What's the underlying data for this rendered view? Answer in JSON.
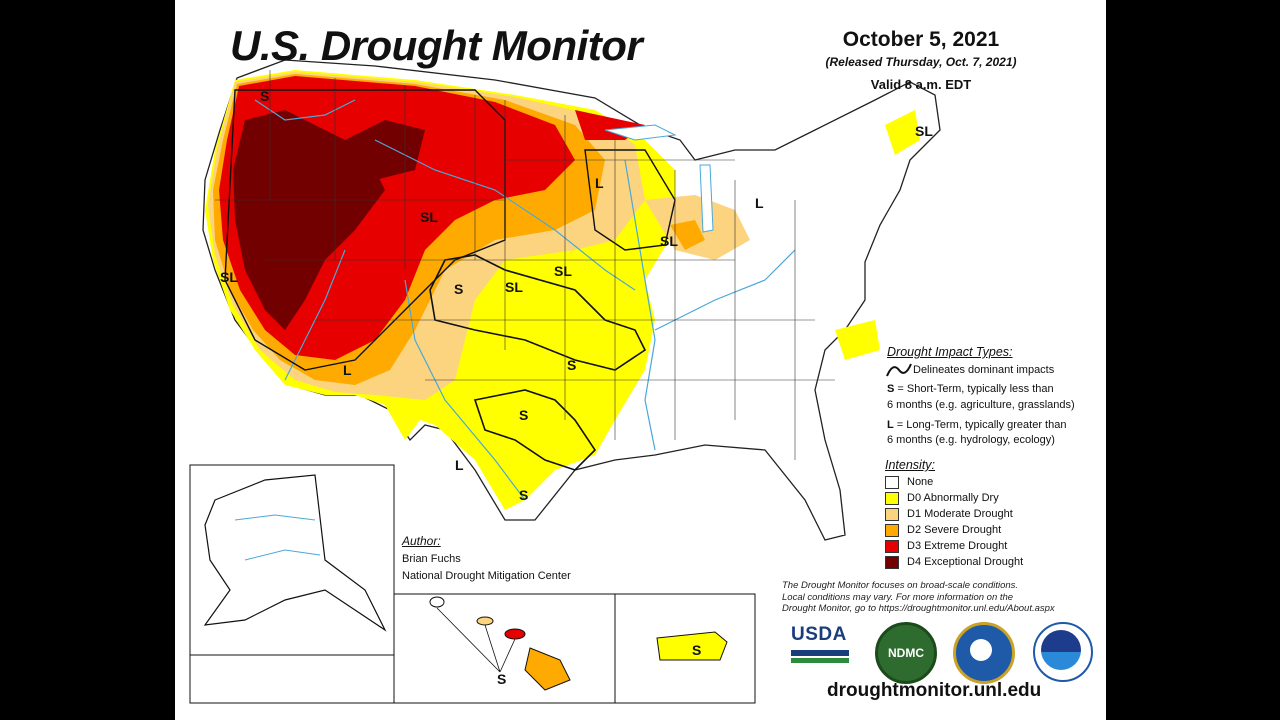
{
  "header": {
    "title": "U.S. Drought Monitor",
    "date": "October 5, 2021",
    "released": "(Released Thursday, Oct. 7, 2021)",
    "valid": "Valid 8 a.m. EDT"
  },
  "impact_types": {
    "heading": "Drought Impact Types:",
    "line_desc": "Delineates dominant impacts",
    "short_term_key": "S",
    "short_term_line1": " = Short-Term, typically less than",
    "short_term_line2": "6 months (e.g. agriculture, grasslands)",
    "long_term_key": "L",
    "long_term_line1": " = Long-Term, typically greater than",
    "long_term_line2": "6 months (e.g. hydrology, ecology)"
  },
  "intensity": {
    "heading": "Intensity:",
    "items": [
      {
        "label": "None",
        "color": "#ffffff"
      },
      {
        "label": "D0 Abnormally Dry",
        "color": "#ffff00"
      },
      {
        "label": "D1 Moderate Drought",
        "color": "#fcd37f"
      },
      {
        "label": "D2 Severe Drought",
        "color": "#ffaa00"
      },
      {
        "label": "D3 Extreme Drought",
        "color": "#e60000"
      },
      {
        "label": "D4 Exceptional Drought",
        "color": "#730000"
      }
    ]
  },
  "author": {
    "heading": "Author:",
    "name": "Brian Fuchs",
    "org": "National Drought Mitigation Center"
  },
  "disclaimer": {
    "line1": "The Drought Monitor focuses on broad-scale conditions.",
    "line2": "Local conditions may vary. For more information on the",
    "line3": "Drought Monitor, go to https://droughtmonitor.unl.edu/About.aspx"
  },
  "map_labels": {
    "wa_s": "S",
    "ca_sl": "SL",
    "mt_sl": "SL",
    "mn_l": "L",
    "mi_l": "L",
    "wi_sl": "SL",
    "ne_sl": "SL",
    "co_s": "S",
    "ks_sl": "SL",
    "az_l": "L",
    "ok_s": "S",
    "tx_s": "S",
    "tx_l": "L",
    "tx_s2": "S",
    "me_sl": "SL",
    "hi_s": "S",
    "pr_s": "S"
  },
  "logos": {
    "usda": "USDA",
    "ndmc": "NDMC"
  },
  "website": "droughtmonitor.unl.edu"
}
